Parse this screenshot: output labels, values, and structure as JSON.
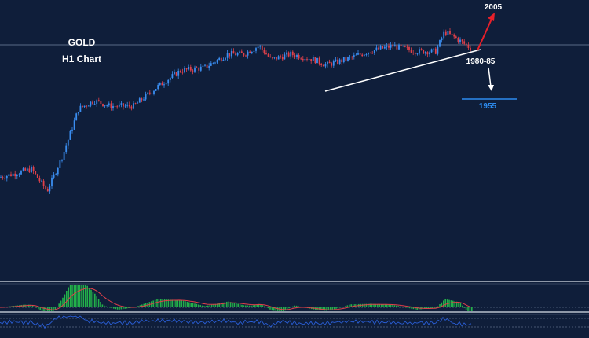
{
  "chart_data": {
    "type": "candlestick",
    "instrument": "GOLD",
    "timeframe": "H1 Chart",
    "colors": {
      "background": "#0f1e3a",
      "bull": "#3a8df0",
      "bear": "#e0404a",
      "trendline": "#ffffff",
      "support_line": "#2d8cf0",
      "up_arrow": "#e8202a",
      "down_arrow": "#ffffff",
      "histogram": "#22b04a",
      "signal": "#e0404a",
      "osc_line": "#2a5fd8"
    },
    "price_path": [
      [
        0,
        1957
      ],
      [
        40,
        1960
      ],
      [
        60,
        1952
      ],
      [
        80,
        1965
      ],
      [
        100,
        1982
      ],
      [
        120,
        1985
      ],
      [
        140,
        1983
      ],
      [
        170,
        1983
      ],
      [
        200,
        1990
      ],
      [
        230,
        1996
      ],
      [
        260,
        1997
      ],
      [
        290,
        2002
      ],
      [
        310,
        2002
      ],
      [
        330,
        2005
      ],
      [
        345,
        2000
      ],
      [
        370,
        2002
      ],
      [
        400,
        2000
      ],
      [
        415,
        1998
      ],
      [
        440,
        2000
      ],
      [
        470,
        2003
      ],
      [
        500,
        2005
      ],
      [
        530,
        2003
      ],
      [
        555,
        2003
      ],
      [
        566,
        2010
      ],
      [
        580,
        2008
      ],
      [
        600,
        2004
      ]
    ],
    "annotations": {
      "target_up": "2005",
      "support_zone": "1980-85",
      "target_down": "1955"
    },
    "indicators": [
      "histogram oscillator",
      "line oscillator"
    ]
  }
}
